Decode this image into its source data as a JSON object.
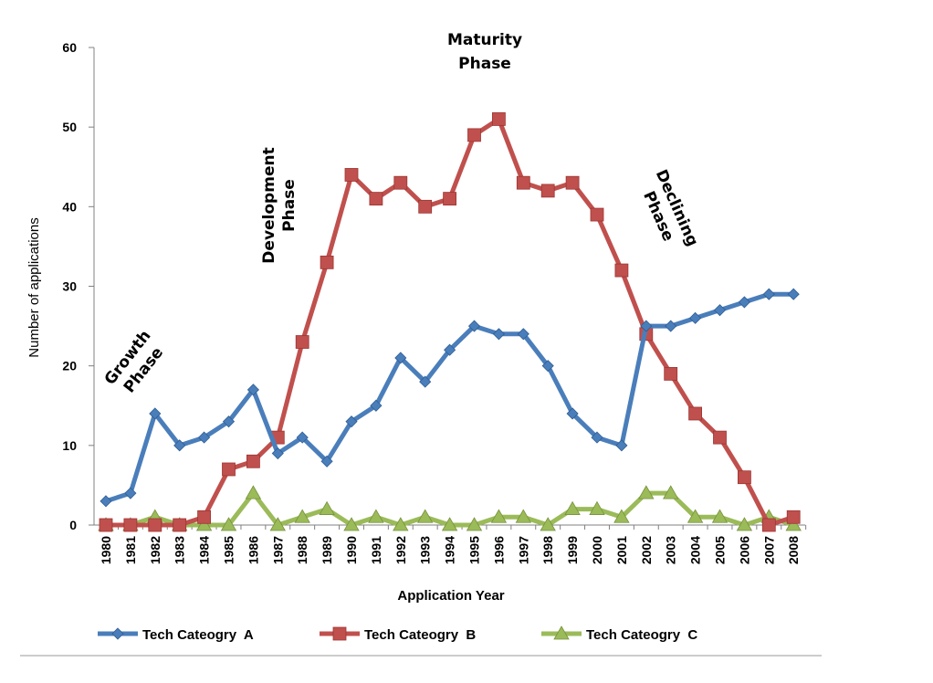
{
  "chart_data": {
    "type": "line",
    "title": "",
    "xlabel": "Application Year",
    "ylabel": "Number of applications",
    "ylim": [
      0,
      60
    ],
    "yticks": [
      0,
      10,
      20,
      30,
      40,
      50,
      60
    ],
    "grid": false,
    "legend_position": "bottom",
    "categories": [
      "1980",
      "1981",
      "1982",
      "1983",
      "1984",
      "1985",
      "1986",
      "1987",
      "1988",
      "1989",
      "1990",
      "1991",
      "1992",
      "1993",
      "1994",
      "1995",
      "1996",
      "1997",
      "1998",
      "1999",
      "2000",
      "2001",
      "2002",
      "2003",
      "2004",
      "2005",
      "2006",
      "2007",
      "2008"
    ],
    "series": [
      {
        "name": "Tech Cateogry  A",
        "color": "#4a7ebb",
        "marker": "diamond",
        "values": [
          3,
          4,
          14,
          10,
          11,
          13,
          17,
          9,
          11,
          8,
          13,
          15,
          21,
          18,
          22,
          25,
          24,
          24,
          20,
          14,
          11,
          10,
          25,
          25,
          26,
          27,
          28,
          29,
          29
        ]
      },
      {
        "name": "Tech Cateogry  B",
        "color": "#c0504d",
        "marker": "square",
        "values": [
          0,
          0,
          0,
          0,
          1,
          7,
          8,
          11,
          23,
          33,
          44,
          41,
          43,
          40,
          41,
          49,
          51,
          43,
          42,
          43,
          39,
          32,
          24,
          19,
          14,
          11,
          6,
          0,
          1
        ]
      },
      {
        "name": "Tech Cateogry  C",
        "color": "#9bbb59",
        "marker": "triangle",
        "values": [
          0,
          0,
          1,
          0,
          0,
          0,
          4,
          0,
          1,
          2,
          0,
          1,
          0,
          1,
          0,
          0,
          1,
          1,
          0,
          2,
          2,
          1,
          4,
          4,
          1,
          1,
          0,
          1,
          0
        ]
      }
    ],
    "annotations": [
      {
        "id": "growth",
        "lines": [
          "Growth",
          "Phase"
        ]
      },
      {
        "id": "development",
        "lines": [
          "Development",
          "Phase"
        ]
      },
      {
        "id": "maturity",
        "lines": [
          "Maturity",
          "Phase"
        ]
      },
      {
        "id": "declining",
        "lines": [
          "Declining",
          "Phase"
        ]
      }
    ]
  }
}
